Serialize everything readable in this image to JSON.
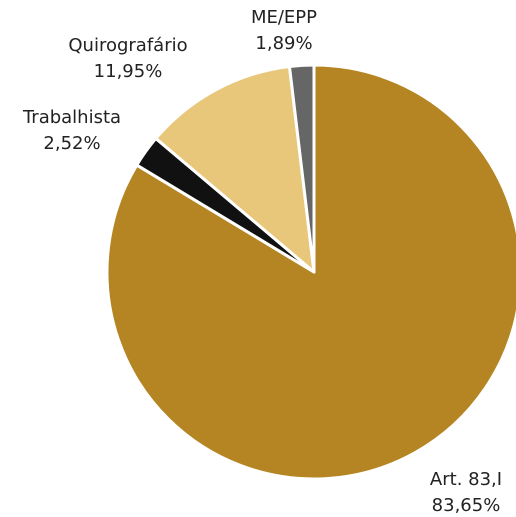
{
  "chart_data": {
    "type": "pie",
    "categories": [
      "Art. 83,I",
      "Trabalhista",
      "Quirografário",
      "ME/EPP"
    ],
    "values": [
      83.65,
      2.52,
      11.95,
      1.89
    ],
    "value_labels": [
      "83,65%",
      "2,52%",
      "11,95%",
      "1,89%"
    ],
    "colors": [
      "#b58523",
      "#111111",
      "#e8c77a",
      "#666666"
    ]
  }
}
